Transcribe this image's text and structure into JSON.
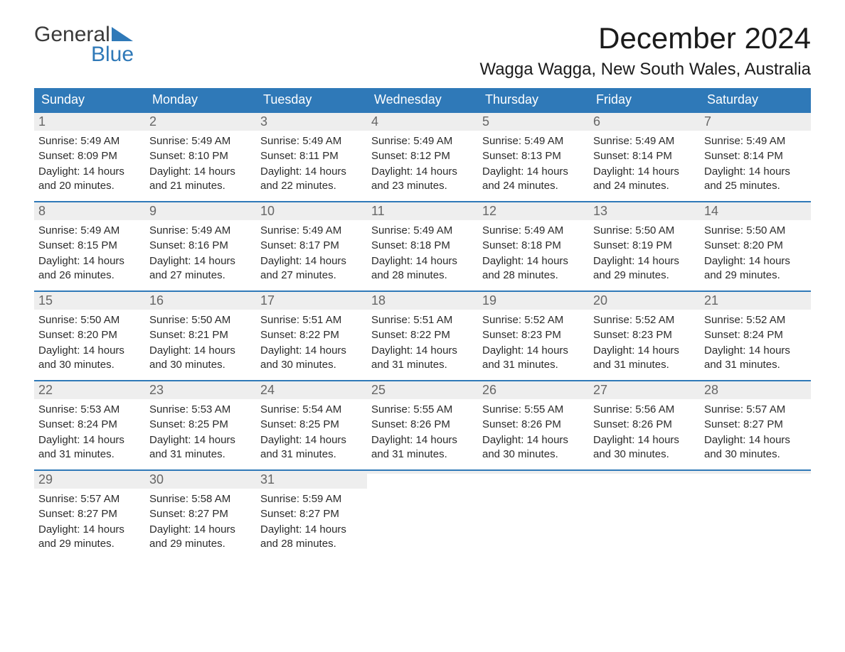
{
  "logo": {
    "part1": "General",
    "part2": "Blue"
  },
  "title": "December 2024",
  "location": "Wagga Wagga, New South Wales, Australia",
  "colors": {
    "header_bg": "#2f79b8",
    "header_text": "#ffffff",
    "daynum_bg": "#eeeeee",
    "daynum_text": "#666666",
    "body_text": "#2b2b2b",
    "logo_gray": "#3a3a3a",
    "logo_blue": "#2f79b8"
  },
  "day_labels": [
    "Sunday",
    "Monday",
    "Tuesday",
    "Wednesday",
    "Thursday",
    "Friday",
    "Saturday"
  ],
  "weeks": [
    [
      {
        "n": "1",
        "sr": "5:49 AM",
        "ss": "8:09 PM",
        "dl": "14 hours and 20 minutes."
      },
      {
        "n": "2",
        "sr": "5:49 AM",
        "ss": "8:10 PM",
        "dl": "14 hours and 21 minutes."
      },
      {
        "n": "3",
        "sr": "5:49 AM",
        "ss": "8:11 PM",
        "dl": "14 hours and 22 minutes."
      },
      {
        "n": "4",
        "sr": "5:49 AM",
        "ss": "8:12 PM",
        "dl": "14 hours and 23 minutes."
      },
      {
        "n": "5",
        "sr": "5:49 AM",
        "ss": "8:13 PM",
        "dl": "14 hours and 24 minutes."
      },
      {
        "n": "6",
        "sr": "5:49 AM",
        "ss": "8:14 PM",
        "dl": "14 hours and 24 minutes."
      },
      {
        "n": "7",
        "sr": "5:49 AM",
        "ss": "8:14 PM",
        "dl": "14 hours and 25 minutes."
      }
    ],
    [
      {
        "n": "8",
        "sr": "5:49 AM",
        "ss": "8:15 PM",
        "dl": "14 hours and 26 minutes."
      },
      {
        "n": "9",
        "sr": "5:49 AM",
        "ss": "8:16 PM",
        "dl": "14 hours and 27 minutes."
      },
      {
        "n": "10",
        "sr": "5:49 AM",
        "ss": "8:17 PM",
        "dl": "14 hours and 27 minutes."
      },
      {
        "n": "11",
        "sr": "5:49 AM",
        "ss": "8:18 PM",
        "dl": "14 hours and 28 minutes."
      },
      {
        "n": "12",
        "sr": "5:49 AM",
        "ss": "8:18 PM",
        "dl": "14 hours and 28 minutes."
      },
      {
        "n": "13",
        "sr": "5:50 AM",
        "ss": "8:19 PM",
        "dl": "14 hours and 29 minutes."
      },
      {
        "n": "14",
        "sr": "5:50 AM",
        "ss": "8:20 PM",
        "dl": "14 hours and 29 minutes."
      }
    ],
    [
      {
        "n": "15",
        "sr": "5:50 AM",
        "ss": "8:20 PM",
        "dl": "14 hours and 30 minutes."
      },
      {
        "n": "16",
        "sr": "5:50 AM",
        "ss": "8:21 PM",
        "dl": "14 hours and 30 minutes."
      },
      {
        "n": "17",
        "sr": "5:51 AM",
        "ss": "8:22 PM",
        "dl": "14 hours and 30 minutes."
      },
      {
        "n": "18",
        "sr": "5:51 AM",
        "ss": "8:22 PM",
        "dl": "14 hours and 31 minutes."
      },
      {
        "n": "19",
        "sr": "5:52 AM",
        "ss": "8:23 PM",
        "dl": "14 hours and 31 minutes."
      },
      {
        "n": "20",
        "sr": "5:52 AM",
        "ss": "8:23 PM",
        "dl": "14 hours and 31 minutes."
      },
      {
        "n": "21",
        "sr": "5:52 AM",
        "ss": "8:24 PM",
        "dl": "14 hours and 31 minutes."
      }
    ],
    [
      {
        "n": "22",
        "sr": "5:53 AM",
        "ss": "8:24 PM",
        "dl": "14 hours and 31 minutes."
      },
      {
        "n": "23",
        "sr": "5:53 AM",
        "ss": "8:25 PM",
        "dl": "14 hours and 31 minutes."
      },
      {
        "n": "24",
        "sr": "5:54 AM",
        "ss": "8:25 PM",
        "dl": "14 hours and 31 minutes."
      },
      {
        "n": "25",
        "sr": "5:55 AM",
        "ss": "8:26 PM",
        "dl": "14 hours and 31 minutes."
      },
      {
        "n": "26",
        "sr": "5:55 AM",
        "ss": "8:26 PM",
        "dl": "14 hours and 30 minutes."
      },
      {
        "n": "27",
        "sr": "5:56 AM",
        "ss": "8:26 PM",
        "dl": "14 hours and 30 minutes."
      },
      {
        "n": "28",
        "sr": "5:57 AM",
        "ss": "8:27 PM",
        "dl": "14 hours and 30 minutes."
      }
    ],
    [
      {
        "n": "29",
        "sr": "5:57 AM",
        "ss": "8:27 PM",
        "dl": "14 hours and 29 minutes."
      },
      {
        "n": "30",
        "sr": "5:58 AM",
        "ss": "8:27 PM",
        "dl": "14 hours and 29 minutes."
      },
      {
        "n": "31",
        "sr": "5:59 AM",
        "ss": "8:27 PM",
        "dl": "14 hours and 28 minutes."
      },
      null,
      null,
      null,
      null
    ]
  ],
  "labels": {
    "sunrise": "Sunrise:",
    "sunset": "Sunset:",
    "daylight": "Daylight:"
  }
}
